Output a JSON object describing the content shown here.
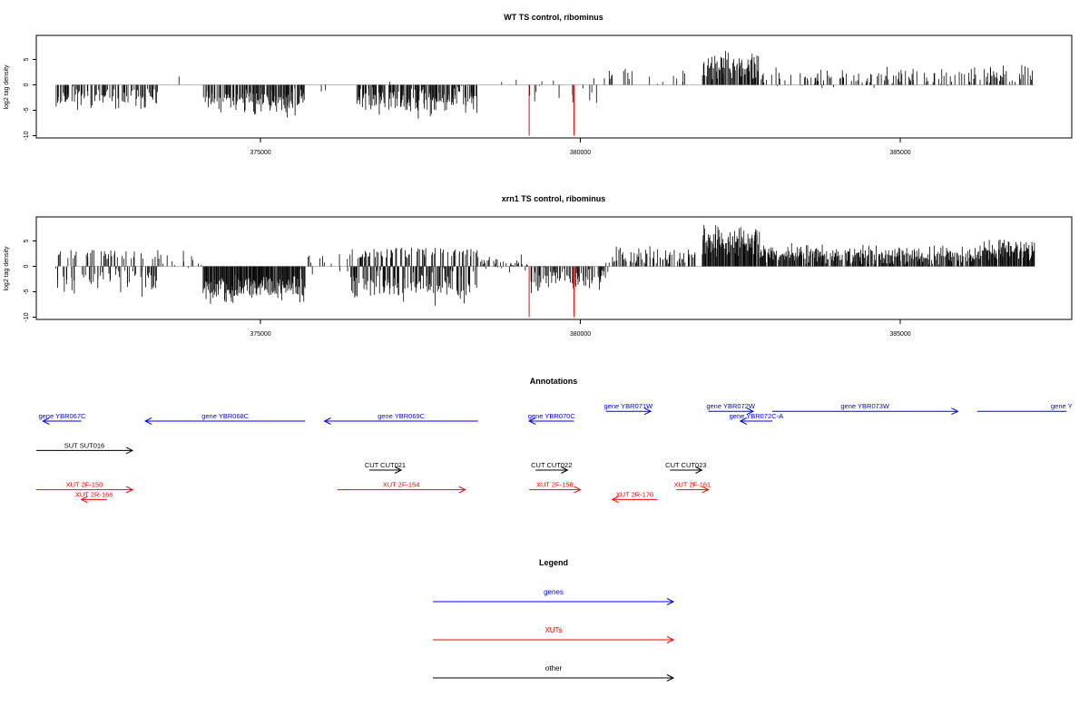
{
  "chart_data": [
    {
      "type": "bar",
      "title": "WT TS control, ribominus",
      "ylabel": "log2 tag density",
      "xlabel": "",
      "xlim": [
        371500,
        387500
      ],
      "ylim": [
        -10,
        10
      ],
      "x_ticks": [
        "375000",
        "380000",
        "385000"
      ],
      "y_ticks": [
        "-10",
        "-5",
        "0",
        "5"
      ],
      "grid": false,
      "seed": 11,
      "segments": [
        {
          "start": 371800,
          "end": 373400,
          "mean": -2.5,
          "var": 1.6,
          "density": 0.55
        },
        {
          "start": 373400,
          "end": 374000,
          "mean": 0.5,
          "var": 1.2,
          "density": 0.05
        },
        {
          "start": 374100,
          "end": 375700,
          "mean": -3.2,
          "var": 1.8,
          "density": 0.7
        },
        {
          "start": 375700,
          "end": 376400,
          "mean": -0.5,
          "var": 1.0,
          "density": 0.05
        },
        {
          "start": 376500,
          "end": 378400,
          "mean": -3.2,
          "var": 2.0,
          "density": 0.7
        },
        {
          "start": 378400,
          "end": 379200,
          "mean": 0.8,
          "var": 1.5,
          "density": 0.05
        },
        {
          "start": 379200,
          "end": 380300,
          "mean": -1.5,
          "var": 1.6,
          "density": 0.12
        },
        {
          "start": 380300,
          "end": 381800,
          "mean": 1.2,
          "var": 1.2,
          "density": 0.14
        },
        {
          "start": 381900,
          "end": 382800,
          "mean": 3.6,
          "var": 1.8,
          "density": 0.8
        },
        {
          "start": 382800,
          "end": 386300,
          "mean": 1.6,
          "var": 1.2,
          "density": 0.32
        },
        {
          "start": 386300,
          "end": 387100,
          "mean": 2.2,
          "var": 1.3,
          "density": 0.55
        }
      ],
      "red_x": [
        379200,
        379900
      ],
      "red_y": -10
    },
    {
      "type": "bar",
      "title": "xrn1 TS control, ribominus",
      "ylabel": "log2 tag density",
      "xlabel": "",
      "xlim": [
        371500,
        387500
      ],
      "ylim": [
        -10,
        10
      ],
      "x_ticks": [
        "375000",
        "380000",
        "385000"
      ],
      "y_ticks": [
        "-10",
        "-5",
        "0",
        "5"
      ],
      "grid": false,
      "seed": 29,
      "segments": [
        {
          "start": 371800,
          "end": 373400,
          "mean": -2.5,
          "var": 1.8,
          "density": 0.6,
          "pos_mean": 2.0
        },
        {
          "start": 373400,
          "end": 374100,
          "mean": 0.8,
          "var": 1.8,
          "density": 0.15,
          "pos_mean": 2.0
        },
        {
          "start": 374100,
          "end": 375700,
          "mean": -4.2,
          "var": 2.0,
          "density": 0.95
        },
        {
          "start": 375700,
          "end": 376400,
          "mean": 0.5,
          "var": 1.4,
          "density": 0.2,
          "pos_mean": 1.5
        },
        {
          "start": 376400,
          "end": 378400,
          "mean": -3.8,
          "var": 2.2,
          "density": 0.9,
          "pos_mean": 2.2
        },
        {
          "start": 378400,
          "end": 379200,
          "mean": 0.6,
          "var": 1.2,
          "density": 0.3
        },
        {
          "start": 379200,
          "end": 380400,
          "mean": -2.5,
          "var": 1.8,
          "density": 0.55
        },
        {
          "start": 380400,
          "end": 381800,
          "mean": 1.6,
          "var": 1.4,
          "density": 0.5
        },
        {
          "start": 381900,
          "end": 382800,
          "mean": 5.0,
          "var": 2.0,
          "density": 1.0
        },
        {
          "start": 382800,
          "end": 386300,
          "mean": 2.2,
          "var": 1.3,
          "density": 0.85
        },
        {
          "start": 386300,
          "end": 387100,
          "mean": 3.3,
          "var": 1.4,
          "density": 0.95
        }
      ],
      "red_x": [
        379200,
        379900
      ],
      "red_y": -10
    }
  ],
  "annotations": {
    "title": "Annotations",
    "items": [
      {
        "label": "gene YBR067C",
        "start": 371600,
        "end": 372200,
        "dir": "left",
        "color": "#0000ff",
        "row": 0
      },
      {
        "label": "gene YBR068C",
        "start": 373200,
        "end": 375700,
        "dir": "left",
        "color": "#0000ff",
        "row": 0
      },
      {
        "label": "gene YBR069C",
        "start": 376000,
        "end": 378400,
        "dir": "left",
        "color": "#0000ff",
        "row": 0
      },
      {
        "label": "gene YBR070C",
        "start": 379200,
        "end": 379900,
        "dir": "left",
        "color": "#0000ff",
        "row": 0
      },
      {
        "label": "gene YBR071W",
        "start": 380400,
        "end": 381100,
        "dir": "right",
        "color": "#0000ff",
        "row": -1
      },
      {
        "label": "gene YBR072W",
        "start": 382000,
        "end": 382700,
        "dir": "right",
        "color": "#0000ff",
        "row": -1
      },
      {
        "label": "gene YBR072C-A",
        "start": 382500,
        "end": 383000,
        "dir": "left",
        "color": "#0000ff",
        "row": 0
      },
      {
        "label": "gene YBR073W",
        "start": 383000,
        "end": 385900,
        "dir": "right",
        "color": "#0000ff",
        "row": -1
      },
      {
        "label": "gene Y",
        "start": 386200,
        "end": 387600,
        "dir": "right",
        "color": "#0000ff",
        "row": -1,
        "noarrow": true,
        "label_at_end": true
      },
      {
        "label": "SUT SUT016",
        "start": 370800,
        "end": 373000,
        "dir": "right",
        "color": "#000000",
        "row": 3
      },
      {
        "label": "CUT CUT021",
        "start": 376700,
        "end": 377200,
        "dir": "right",
        "color": "#000000",
        "row": 5
      },
      {
        "label": "CUT CUT022",
        "start": 379300,
        "end": 379800,
        "dir": "right",
        "color": "#000000",
        "row": 5
      },
      {
        "label": "CUT CUT023",
        "start": 381400,
        "end": 381900,
        "dir": "right",
        "color": "#000000",
        "row": 5
      },
      {
        "label": "XUT 2F-150",
        "start": 370800,
        "end": 373000,
        "dir": "right",
        "color": "#ff0000",
        "row": 7
      },
      {
        "label": "XUT 2R-166",
        "start": 372200,
        "end": 372600,
        "dir": "left",
        "color": "#ff0000",
        "row": 8
      },
      {
        "label": "XUT 2F-154",
        "start": 376200,
        "end": 378200,
        "dir": "right",
        "color": "#ff0000",
        "row": 7
      },
      {
        "label": "XUT 2F-158",
        "start": 379200,
        "end": 380000,
        "dir": "right",
        "color": "#ff0000",
        "row": 7
      },
      {
        "label": "XUT 2R-170",
        "start": 380500,
        "end": 381200,
        "dir": "left",
        "color": "#ff0000",
        "row": 8
      },
      {
        "label": "XUT 2F-161",
        "start": 381500,
        "end": 382000,
        "dir": "right",
        "color": "#ff0000",
        "row": 7
      }
    ]
  },
  "legend": {
    "title": "Legend",
    "items": [
      {
        "label": "genes",
        "color": "#0000ff"
      },
      {
        "label": "XUTs",
        "color": "#ff0000"
      },
      {
        "label": "other",
        "color": "#000000"
      }
    ]
  }
}
